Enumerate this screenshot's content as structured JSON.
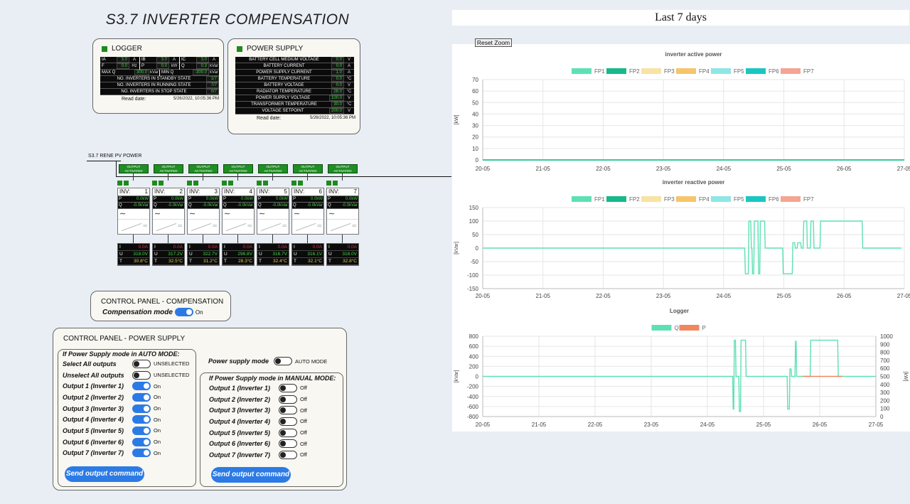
{
  "page": {
    "title": "S3.7 INVERTER COMPENSATION",
    "chart_header": "Last 7 days",
    "reset_zoom": "Reset Zoom"
  },
  "logger": {
    "title": "LOGGER",
    "cells": [
      {
        "label": "IA",
        "value": "3.0",
        "unit": "A"
      },
      {
        "label": "IB",
        "value": "3.0",
        "unit": "A"
      },
      {
        "label": "IC",
        "value": "3.0",
        "unit": "A"
      },
      {
        "label": "F",
        "value": "0.0",
        "unit": "Hz"
      },
      {
        "label": "P",
        "value": "0.0",
        "unit": "kW"
      },
      {
        "label": "Q",
        "value": "0.3",
        "unit": "kVar"
      },
      {
        "label": "MAX Q",
        "value": "300.0",
        "unit": "kVar"
      },
      {
        "label": "MIN Q",
        "value": "-300.0",
        "unit": "kVar"
      }
    ],
    "status_rows": [
      {
        "label": "NO. INVERTERS IN STANDBY STATE",
        "value": "1/7"
      },
      {
        "label": "NO. INVERTERS IN RUNNING STATE",
        "value": "7/7"
      },
      {
        "label": "NO. INVERTERS IN STOP STATE",
        "value": "0/7"
      }
    ],
    "read_label": "Read date:",
    "read_value": "5/26/2022, 10:05:36 PM"
  },
  "power_supply": {
    "title": "POWER SUPPLY",
    "rows": [
      {
        "label": "BATTERY CELL MEDIUM VOLTAGE",
        "value": "0.0",
        "unit": "V"
      },
      {
        "label": "BATTERY CURRENT",
        "value": "0.0",
        "unit": "A"
      },
      {
        "label": "POWER SUPPLY CURRENT",
        "value": "1.0",
        "unit": "A"
      },
      {
        "label": "BATTERY TEMPERATURE",
        "value": "0.0",
        "unit": "°C"
      },
      {
        "label": "BATTERY VOLTAGE",
        "value": "0.0",
        "unit": "V"
      },
      {
        "label": "RADIATOR TEMPERATURE",
        "value": "28.0",
        "unit": "°C"
      },
      {
        "label": "POWER SUPPLY VOLTAGE",
        "value": "100.0",
        "unit": "V"
      },
      {
        "label": "TRANSFORMER TEMPERATURE",
        "value": "30.0",
        "unit": "°C"
      },
      {
        "label": "VOLTAGE SETPOINT",
        "value": "200.0",
        "unit": "V"
      }
    ],
    "read_label": "Read date:",
    "read_value": "5/26/2022, 10:05:36 PM"
  },
  "bus": {
    "label": "S3.7 RENE PV POWER"
  },
  "output_activated": [
    "OUTPUT ACTIVATED",
    "OUTPUT ACTIVATED",
    "OUTPUT ACTIVATED",
    "OUTPUT ACTIVATED",
    "OUTPUT ACTIVATED",
    "OUTPUT ACTIVATED",
    "OUTPUT ACTIVATED"
  ],
  "inverters": [
    {
      "name": "INV:",
      "num": "1",
      "p": "0.0kW",
      "q": "-0.0kVar",
      "i": "0.0A",
      "u": "318.0V",
      "t": "30.8°C"
    },
    {
      "name": "INV:",
      "num": "2",
      "p": "0.0kW",
      "q": "-0.0kVar",
      "i": "0.0A",
      "u": "317.2V",
      "t": "32.5°C"
    },
    {
      "name": "INV:",
      "num": "3",
      "p": "0.0kW",
      "q": "-0.0kVar",
      "i": "0.0A",
      "u": "322.7V",
      "t": "31.2°C"
    },
    {
      "name": "INV:",
      "num": "4",
      "p": "0.0kW",
      "q": "-0.0kVar",
      "i": "0.0A",
      "u": "296.8V",
      "t": "28.3°C"
    },
    {
      "name": "INV:",
      "num": "5",
      "p": "0.0kW",
      "q": "-0.0kVar",
      "i": "0.0A",
      "u": "316.7V",
      "t": "32.4°C"
    },
    {
      "name": "INV:",
      "num": "6",
      "p": "0.0kW",
      "q": "-0.0kVar",
      "i": "0.0A",
      "u": "316.1V",
      "t": "32.1°C"
    },
    {
      "name": "INV:",
      "num": "7",
      "p": "0.0kW",
      "q": "-0.0kVar",
      "i": "0.0A",
      "u": "318.0V",
      "t": "32.8°C"
    }
  ],
  "cp_compensation": {
    "title": "CONTROL PANEL - COMPENSATION",
    "mode_label": "Compensation mode",
    "mode_state": "On"
  },
  "cp_power_supply": {
    "title": "CONTROL PANEL - POWER SUPPLY",
    "auto_header": "If Power Supply mode in AUTO MODE:",
    "select_all": {
      "label": "Select All outputs",
      "state": "UNSELECTED"
    },
    "unselect_all": {
      "label": "Unselect All outputs",
      "state": "UNSELECTED"
    },
    "auto_outputs": [
      {
        "label": "Output 1 (Inverter 1)",
        "state": "On"
      },
      {
        "label": "Output 2 (Inverter 2)",
        "state": "On"
      },
      {
        "label": "Output 3 (Inverter 3)",
        "state": "On"
      },
      {
        "label": "Output 4 (Inverter 4)",
        "state": "On"
      },
      {
        "label": "Output 5 (Inverter 5)",
        "state": "On"
      },
      {
        "label": "Output 6 (Inverter 6)",
        "state": "On"
      },
      {
        "label": "Output 7 (Inverter 7)",
        "state": "On"
      }
    ],
    "send_button": "Send output command",
    "mode_label": "Power supply mode",
    "mode_state": "AUTO MODE",
    "manual_header": "If Power Supply mode in MANUAL MODE:",
    "manual_outputs": [
      {
        "label": "Output 1 (Inverter 1)",
        "state": "Off"
      },
      {
        "label": "Output 2 (Inverter 2)",
        "state": "Off"
      },
      {
        "label": "Output 3 (Inverter 3)",
        "state": "Off"
      },
      {
        "label": "Output 4 (Inverter 4)",
        "state": "Off"
      },
      {
        "label": "Output 5 (Inverter 5)",
        "state": "Off"
      },
      {
        "label": "Output 6 (Inverter 6)",
        "state": "Off"
      },
      {
        "label": "Output 7 (Inverter 7)",
        "state": "Off"
      }
    ],
    "send_button_manual": "Send output command"
  },
  "colors": {
    "FP1": "#5ee0b5",
    "FP2": "#17b98a",
    "FP3": "#f8e3a3",
    "FP4": "#f6c56a",
    "FP5": "#8fe6e6",
    "FP6": "#19c7c2",
    "FP7": "#f4a593",
    "Q": "#5ee0b5",
    "P": "#f0875e"
  },
  "chart_data": [
    {
      "type": "line",
      "title": "inverter active power",
      "ylabel": "[kW]",
      "x_ticks": [
        "20-05",
        "21-05",
        "22-05",
        "23-05",
        "24-05",
        "25-05",
        "26-05",
        "27-05"
      ],
      "y_ticks": [
        0,
        10,
        20,
        30,
        40,
        50,
        60,
        70
      ],
      "ylim": [
        0,
        70
      ],
      "legend": [
        "FP1",
        "FP2",
        "FP3",
        "FP4",
        "FP5",
        "FP6",
        "FP7"
      ],
      "series": [
        {
          "name": "FP1",
          "x": [
            0,
            7
          ],
          "values": [
            0,
            0
          ]
        },
        {
          "name": "FP2",
          "x": [
            0,
            7
          ],
          "values": [
            0,
            0
          ]
        }
      ]
    },
    {
      "type": "line",
      "title": "inverter reactive power",
      "ylabel": "[kVar]",
      "x_ticks": [
        "20-05",
        "21-05",
        "22-05",
        "23-05",
        "24-05",
        "25-05",
        "26-05",
        "27-05"
      ],
      "y_ticks": [
        -150,
        -100,
        -50,
        0,
        50,
        100,
        150
      ],
      "ylim": [
        -150,
        150
      ],
      "legend": [
        "FP1",
        "FP2",
        "FP3",
        "FP4",
        "FP5",
        "FP6",
        "FP7"
      ],
      "series": [
        {
          "name": "FP1",
          "x": [
            0,
            4.35,
            4.36,
            4.41,
            4.42,
            4.45,
            4.46,
            4.47,
            4.48,
            4.5,
            4.51,
            4.57,
            4.58,
            4.6,
            4.61,
            4.68,
            4.69,
            4.98,
            4.99,
            5.14,
            5.15,
            5.18,
            5.19,
            5.22,
            5.23,
            5.28,
            5.29,
            5.32,
            5.33,
            5.38,
            5.39,
            5.44,
            5.45,
            5.49,
            5.5,
            5.6,
            5.61,
            5.63,
            5.64,
            6.3,
            6.31,
            6.95
          ],
          "values": [
            0,
            0,
            -95,
            -95,
            100,
            100,
            0,
            0,
            -95,
            -95,
            100,
            100,
            -95,
            -95,
            100,
            100,
            0,
            0,
            -95,
            -95,
            20,
            20,
            0,
            0,
            20,
            20,
            0,
            0,
            100,
            100,
            0,
            0,
            100,
            100,
            0,
            0,
            100,
            100,
            100,
            100,
            0,
            0
          ]
        }
      ]
    },
    {
      "type": "line",
      "title": "Logger",
      "ylabel": "[kVar]",
      "y2label": "[kW]",
      "x_ticks": [
        "20-05",
        "21-05",
        "22-05",
        "23-05",
        "24-05",
        "25-05",
        "26-05",
        "27-05"
      ],
      "y_ticks": [
        -800,
        -600,
        -400,
        -200,
        0,
        200,
        400,
        600,
        800
      ],
      "y2_ticks": [
        0,
        100,
        200,
        300,
        400,
        500,
        600,
        700,
        800,
        900,
        1000
      ],
      "ylim": [
        -800,
        800
      ],
      "y2lim": [
        0,
        1000
      ],
      "legend": [
        "Q",
        "P"
      ],
      "series": [
        {
          "name": "Q",
          "x": [
            0,
            4.45,
            4.46,
            4.47,
            4.48,
            4.5,
            4.51,
            4.56,
            4.57,
            4.59,
            4.6,
            4.68,
            4.69,
            5.42,
            5.43,
            5.46,
            5.47,
            5.49,
            5.5,
            5.56,
            5.57,
            5.58,
            5.59,
            5.83,
            5.84,
            6.32,
            6.33,
            7.0
          ],
          "values": [
            0,
            0,
            -650,
            -650,
            720,
            720,
            0,
            0,
            -700,
            -700,
            720,
            720,
            0,
            0,
            -650,
            -650,
            150,
            150,
            0,
            0,
            700,
            700,
            0,
            0,
            720,
            720,
            0,
            0
          ]
        },
        {
          "name": "P",
          "x": [
            5.7,
            6.4
          ],
          "values": [
            0,
            0
          ]
        }
      ]
    }
  ]
}
